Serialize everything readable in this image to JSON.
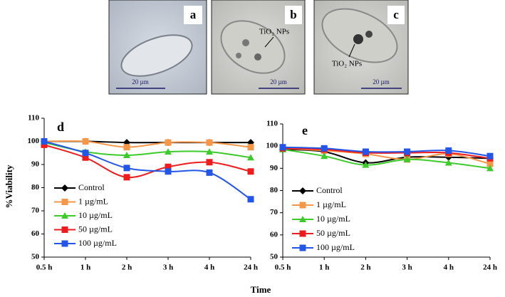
{
  "panels": [
    {
      "label": "a",
      "scale": "20 µm"
    },
    {
      "label": "b",
      "scale": "20 µm",
      "annotation": "TiO₂ NPs"
    },
    {
      "label": "c",
      "scale": "20 µm",
      "annotation": "TiO₂ NPs"
    }
  ],
  "chart_data": [
    {
      "type": "line",
      "label": "d",
      "xlabel": "Time",
      "ylabel": "%Viability",
      "categories": [
        "0.5 h",
        "1 h",
        "2 h",
        "3 h",
        "4 h",
        "24 h"
      ],
      "ylim": [
        50,
        110
      ],
      "yticks": [
        50,
        60,
        70,
        80,
        90,
        100,
        110
      ],
      "legend": "lower-left",
      "smooth": true,
      "series": [
        {
          "name": "Control",
          "color": "#000000",
          "marker": "diamond",
          "values": [
            100,
            100,
            99.5,
            99.5,
            99.5,
            99.5
          ]
        },
        {
          "name": "1 µg/mL",
          "color": "#f79646",
          "marker": "square",
          "values": [
            100,
            100,
            97.5,
            99.5,
            99.5,
            97.5
          ]
        },
        {
          "name": "10 µg/mL",
          "color": "#3ccc2a",
          "marker": "triangle",
          "values": [
            99.5,
            95.5,
            94,
            95.5,
            95.5,
            93
          ]
        },
        {
          "name": "50 µg/mL",
          "color": "#ee1c1c",
          "marker": "square",
          "values": [
            98.5,
            93,
            84.5,
            89,
            91,
            87
          ]
        },
        {
          "name": "100 µg/mL",
          "color": "#2255e8",
          "marker": "square",
          "values": [
            100,
            95,
            88.5,
            87,
            86.5,
            75
          ]
        }
      ]
    },
    {
      "type": "line",
      "label": "e",
      "categories": [
        "0.5 h",
        "1 h",
        "2 h",
        "3 h",
        "4 h",
        "24 h"
      ],
      "ylim": [
        50,
        110
      ],
      "yticks": [
        50,
        60,
        70,
        80,
        90,
        100,
        110
      ],
      "legend": "lower-left",
      "smooth": true,
      "series": [
        {
          "name": "Control",
          "color": "#000000",
          "marker": "diamond",
          "values": [
            98.5,
            97.5,
            92.5,
            95,
            95,
            94.5
          ]
        },
        {
          "name": "1 µg/mL",
          "color": "#f79646",
          "marker": "square",
          "values": [
            99,
            98,
            96.5,
            94,
            96.5,
            92
          ]
        },
        {
          "name": "10 µg/mL",
          "color": "#3ccc2a",
          "marker": "triangle",
          "values": [
            98.5,
            95.5,
            91.5,
            94,
            92.5,
            90
          ]
        },
        {
          "name": "50 µg/mL",
          "color": "#ee1c1c",
          "marker": "square",
          "values": [
            99,
            98.5,
            97,
            97,
            97,
            94.5
          ]
        },
        {
          "name": "100 µg/mL",
          "color": "#2255e8",
          "marker": "square",
          "values": [
            99.5,
            99,
            97.5,
            97.5,
            98,
            95.5
          ]
        }
      ]
    }
  ]
}
